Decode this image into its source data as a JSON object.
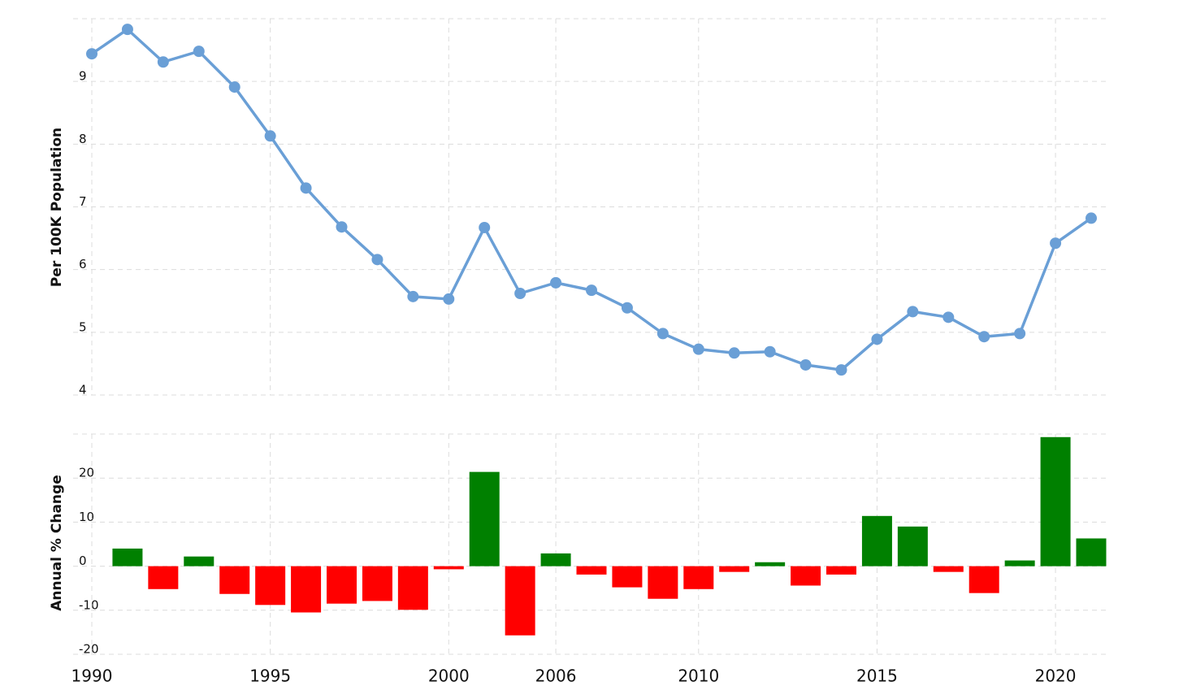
{
  "chart_data": [
    {
      "type": "line",
      "y_label": "Per 100K Population",
      "color": "#6a9fd6",
      "values": [
        9.44,
        9.83,
        9.31,
        9.48,
        8.91,
        8.13,
        7.3,
        6.68,
        6.16,
        5.57,
        5.53,
        6.67,
        5.62,
        5.79,
        5.67,
        5.39,
        4.98,
        4.73,
        4.67,
        4.69,
        4.48,
        4.4,
        4.89,
        5.33,
        5.24,
        4.93,
        4.98,
        6.42,
        6.82
      ],
      "ylim": [
        4,
        10
      ],
      "yticks": [
        4,
        5,
        6,
        7,
        8,
        9
      ],
      "grid": true
    },
    {
      "type": "bar",
      "y_label": "Annual % Change",
      "positive_color": "#008000",
      "negative_color": "#ff0000",
      "categories": [
        "1990",
        null,
        null,
        null,
        null,
        "1995",
        null,
        null,
        null,
        null,
        "2000",
        null,
        null,
        "2006",
        null,
        null,
        null,
        "2010",
        null,
        null,
        null,
        null,
        "2015",
        null,
        null,
        null,
        null,
        "2020",
        null
      ],
      "values": [
        null,
        4.0,
        -5.2,
        2.2,
        -6.3,
        -8.8,
        -10.5,
        -8.5,
        -7.9,
        -9.9,
        -0.7,
        21.4,
        -15.7,
        2.9,
        -1.9,
        -4.8,
        -7.4,
        -5.2,
        -1.3,
        0.9,
        -4.4,
        -1.9,
        11.4,
        9.0,
        -1.3,
        -6.1,
        1.3,
        29.3,
        6.3
      ],
      "ylim": [
        -20,
        30
      ],
      "yticks": [
        -20,
        -10,
        0,
        10,
        20
      ],
      "grid": true
    }
  ]
}
